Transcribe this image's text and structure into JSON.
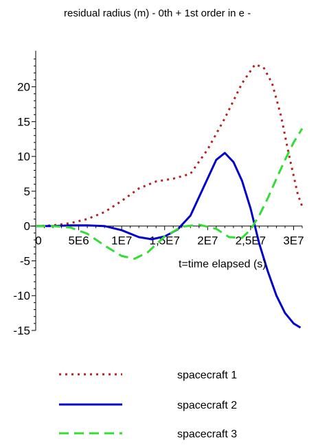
{
  "chart_data": {
    "type": "line",
    "title": "residual radius (m) - 0th + 1st order in e -",
    "xlabel": "t=time elapsed (s)",
    "ylabel": "",
    "xlim": [
      0,
      31000000
    ],
    "ylim": [
      -15,
      24
    ],
    "x_ticks": [
      0,
      5000000,
      10000000,
      15000000,
      20000000,
      25000000,
      30000000
    ],
    "x_tick_labels": [
      "0",
      "5E6",
      "1E7",
      "1,5E7",
      "2E7",
      "2,5E7",
      "3E7"
    ],
    "y_ticks": [
      -15,
      -10,
      -5,
      0,
      5,
      10,
      15,
      20
    ],
    "y_tick_labels": [
      "-15",
      "-10",
      "-5",
      "0",
      "5",
      "10",
      "15",
      "20"
    ],
    "grid": false,
    "legend_position": "bottom",
    "series": [
      {
        "name": "spacecraft 1",
        "color": "#b22222",
        "style": "dotted",
        "points": [
          [
            0,
            0
          ],
          [
            2000000,
            0.1
          ],
          [
            4000000,
            0.4
          ],
          [
            6000000,
            1
          ],
          [
            8000000,
            2
          ],
          [
            10000000,
            3.6
          ],
          [
            12000000,
            5.4
          ],
          [
            14000000,
            6.4
          ],
          [
            16000000,
            6.8
          ],
          [
            18000000,
            7.5
          ],
          [
            20000000,
            11
          ],
          [
            22000000,
            15.5
          ],
          [
            24000000,
            20.5
          ],
          [
            25500000,
            23.2
          ],
          [
            26500000,
            22.8
          ],
          [
            27500000,
            20.5
          ],
          [
            28500000,
            16
          ],
          [
            29500000,
            10
          ],
          [
            30500000,
            4.5
          ],
          [
            31000000,
            2.8
          ]
        ]
      },
      {
        "name": "spacecraft 2",
        "color": "#0000cc",
        "style": "solid",
        "points": [
          [
            0,
            0
          ],
          [
            2000000,
            0
          ],
          [
            4000000,
            0.1
          ],
          [
            6000000,
            0.1
          ],
          [
            8000000,
            0
          ],
          [
            10000000,
            -0.6
          ],
          [
            12000000,
            -1.6
          ],
          [
            13500000,
            -1.9
          ],
          [
            15000000,
            -1.5
          ],
          [
            16500000,
            -0.5
          ],
          [
            18000000,
            1.5
          ],
          [
            19500000,
            5.5
          ],
          [
            21000000,
            9.5
          ],
          [
            22000000,
            10.5
          ],
          [
            23000000,
            9.2
          ],
          [
            24000000,
            6.5
          ],
          [
            25000000,
            2.5
          ],
          [
            26000000,
            -2.5
          ],
          [
            27000000,
            -6.5
          ],
          [
            28000000,
            -10
          ],
          [
            29000000,
            -12.5
          ],
          [
            30000000,
            -14
          ],
          [
            30800000,
            -14.6
          ]
        ]
      },
      {
        "name": "spacecraft 3",
        "color": "#33dd33",
        "style": "dashed",
        "points": [
          [
            0,
            0
          ],
          [
            2000000,
            0
          ],
          [
            4000000,
            -0.2
          ],
          [
            6000000,
            -1.1
          ],
          [
            8000000,
            -2.8
          ],
          [
            10000000,
            -4.3
          ],
          [
            11500000,
            -4.7
          ],
          [
            13000000,
            -3.8
          ],
          [
            15000000,
            -1.5
          ],
          [
            17000000,
            -0.1
          ],
          [
            19000000,
            0.2
          ],
          [
            21000000,
            -0.4
          ],
          [
            22500000,
            -1.6
          ],
          [
            24000000,
            -1.7
          ],
          [
            25000000,
            -0.5
          ],
          [
            26000000,
            1.5
          ],
          [
            27000000,
            4
          ],
          [
            28000000,
            6.8
          ],
          [
            29000000,
            9.5
          ],
          [
            30000000,
            12
          ],
          [
            31000000,
            14
          ]
        ]
      }
    ]
  }
}
